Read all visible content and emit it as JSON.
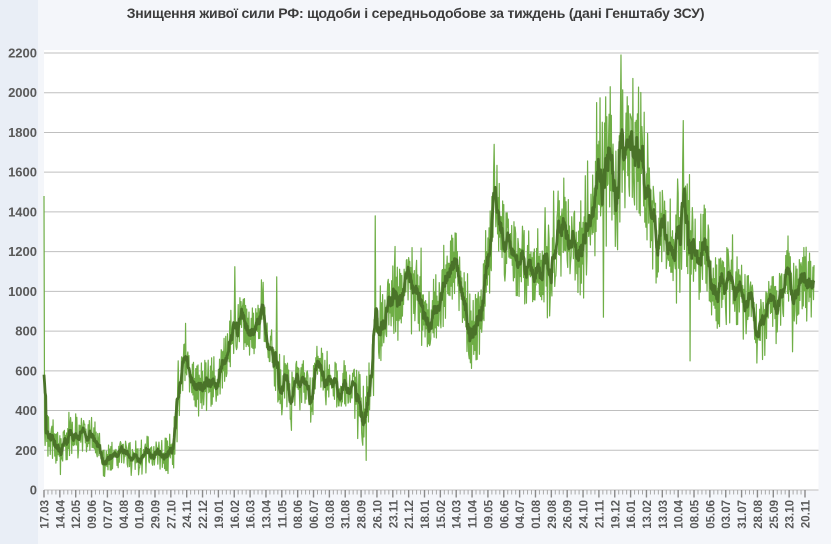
{
  "page": {
    "title": "Знищення живої сили РФ: щодоби і середньодобове за тиждень (дані Генштабу ЗСУ)"
  },
  "chart_data": {
    "type": "line",
    "title": "Знищення живої сили РФ: щодоби і середньодобове за тиждень (дані Генштабу ЗСУ)",
    "legend": "none",
    "grid": "horizontal",
    "y_axis": {
      "min": 0,
      "max": 2200,
      "tick_step": 200
    },
    "x_axis": {
      "days_per_tick": 28,
      "total_days": 1360,
      "tick_labels": [
        "17.03",
        "14.04",
        "12.05",
        "09.06",
        "07.07",
        "04.08",
        "01.09",
        "29.09",
        "27.10",
        "24.11",
        "22.12",
        "19.01",
        "16.02",
        "16.03",
        "13.04",
        "11.05",
        "08.06",
        "06.07",
        "03.08",
        "31.08",
        "28.09",
        "26.10",
        "23.11",
        "21.12",
        "18.01",
        "15.02",
        "14.03",
        "11.04",
        "09.05",
        "06.06",
        "04.07",
        "01.08",
        "29.08",
        "26.09",
        "24.10",
        "21.11",
        "19.12",
        "16.01",
        "13.02",
        "13.03",
        "10.04",
        "08.05",
        "05.06",
        "03.07",
        "31.07",
        "28.08",
        "25.09",
        "23.10",
        "20.11"
      ]
    },
    "series": [
      {
        "name": "щодоби",
        "role": "daily values",
        "color": "#6fae46",
        "line_width": 1.2,
        "noise_seed": 1337,
        "amplitude_anchors": [
          [
            0,
            110
          ],
          [
            60,
            95
          ],
          [
            120,
            70
          ],
          [
            200,
            80
          ],
          [
            240,
            150
          ],
          [
            300,
            130
          ],
          [
            360,
            110
          ],
          [
            420,
            130
          ],
          [
            480,
            115
          ],
          [
            540,
            130
          ],
          [
            585,
            200
          ],
          [
            620,
            200
          ],
          [
            680,
            210
          ],
          [
            730,
            180
          ],
          [
            790,
            210
          ],
          [
            850,
            170
          ],
          [
            906,
            230
          ],
          [
            960,
            200
          ],
          [
            1000,
            300
          ],
          [
            1050,
            280
          ],
          [
            1100,
            220
          ],
          [
            1140,
            230
          ],
          [
            1200,
            170
          ],
          [
            1260,
            160
          ],
          [
            1320,
            180
          ],
          [
            1360,
            150
          ]
        ],
        "spike_points": [
          [
            0,
            1480
          ],
          [
            237,
            650
          ],
          [
            337,
            1124
          ],
          [
            411,
            1073
          ],
          [
            452,
            403
          ],
          [
            585,
            1380
          ],
          [
            795,
            1740
          ],
          [
            908,
            1505
          ],
          [
            976,
            1950
          ],
          [
            988,
            870
          ],
          [
            1000,
            2030
          ],
          [
            1019,
            2190
          ],
          [
            1030,
            1980
          ],
          [
            1040,
            2072
          ],
          [
            1129,
            1860
          ],
          [
            1141,
            650
          ],
          [
            1262,
            770
          ],
          [
            1322,
            696
          ]
        ]
      },
      {
        "name": "середньодобове за тиждень",
        "role": "7-day moving average",
        "color": "#4a7329",
        "line_width": 2.8,
        "anchor_points": [
          [
            0,
            420
          ],
          [
            5,
            300
          ],
          [
            10,
            240
          ],
          [
            19,
            195
          ],
          [
            28,
            215
          ],
          [
            37,
            230
          ],
          [
            46,
            265
          ],
          [
            55,
            300
          ],
          [
            62,
            285
          ],
          [
            69,
            275
          ],
          [
            78,
            283
          ],
          [
            87,
            285
          ],
          [
            96,
            230
          ],
          [
            104,
            176
          ],
          [
            113,
            158
          ],
          [
            122,
            142
          ],
          [
            131,
            170
          ],
          [
            140,
            200
          ],
          [
            148,
            185
          ],
          [
            157,
            168
          ],
          [
            166,
            178
          ],
          [
            175,
            185
          ],
          [
            184,
            195
          ],
          [
            193,
            200
          ],
          [
            201,
            175
          ],
          [
            210,
            150
          ],
          [
            219,
            180
          ],
          [
            228,
            210
          ],
          [
            234,
            330
          ],
          [
            240,
            520
          ],
          [
            249,
            654
          ],
          [
            258,
            537
          ],
          [
            270,
            503
          ],
          [
            281,
            520
          ],
          [
            293,
            537
          ],
          [
            305,
            570
          ],
          [
            316,
            638
          ],
          [
            329,
            738
          ],
          [
            340,
            789
          ],
          [
            349,
            889
          ],
          [
            358,
            822
          ],
          [
            367,
            755
          ],
          [
            376,
            839
          ],
          [
            385,
            906
          ],
          [
            393,
            822
          ],
          [
            402,
            705
          ],
          [
            411,
            537
          ],
          [
            420,
            487
          ],
          [
            429,
            520
          ],
          [
            437,
            470
          ],
          [
            446,
            537
          ],
          [
            455,
            604
          ],
          [
            464,
            520
          ],
          [
            473,
            436
          ],
          [
            482,
            680
          ],
          [
            487,
            620
          ],
          [
            499,
            587
          ],
          [
            511,
            537
          ],
          [
            523,
            487
          ],
          [
            535,
            554
          ],
          [
            546,
            520
          ],
          [
            558,
            436
          ],
          [
            567,
            352
          ],
          [
            576,
            503
          ],
          [
            585,
            738
          ],
          [
            593,
            839
          ],
          [
            602,
            889
          ],
          [
            611,
            939
          ],
          [
            620,
            956
          ],
          [
            629,
            923
          ],
          [
            638,
            1040
          ],
          [
            646,
            1074
          ],
          [
            655,
            1040
          ],
          [
            664,
            956
          ],
          [
            673,
            872
          ],
          [
            682,
            822
          ],
          [
            691,
            889
          ],
          [
            700,
            906
          ],
          [
            708,
            990
          ],
          [
            717,
            1107
          ],
          [
            726,
            1158
          ],
          [
            735,
            1050
          ],
          [
            747,
            839
          ],
          [
            758,
            780
          ],
          [
            767,
            806
          ],
          [
            776,
            940
          ],
          [
            785,
            1141
          ],
          [
            794,
            1393
          ],
          [
            800,
            1443
          ],
          [
            808,
            1275
          ],
          [
            817,
            1225
          ],
          [
            826,
            1208
          ],
          [
            835,
            1141
          ],
          [
            844,
            1158
          ],
          [
            853,
            1175
          ],
          [
            861,
            1116
          ],
          [
            870,
            1133
          ],
          [
            879,
            1124
          ],
          [
            888,
            1149
          ],
          [
            897,
            1183
          ],
          [
            906,
            1242
          ],
          [
            914,
            1250
          ],
          [
            923,
            1292
          ],
          [
            932,
            1208
          ],
          [
            941,
            1183
          ],
          [
            950,
            1175
          ],
          [
            959,
            1376
          ],
          [
            967,
            1460
          ],
          [
            976,
            1510
          ],
          [
            982,
            1630
          ],
          [
            991,
            1594
          ],
          [
            1000,
            1661
          ],
          [
            1009,
            1470
          ],
          [
            1017,
            1745
          ],
          [
            1026,
            1812
          ],
          [
            1035,
            1695
          ],
          [
            1044,
            1661
          ],
          [
            1053,
            1645
          ],
          [
            1062,
            1510
          ],
          [
            1070,
            1376
          ],
          [
            1079,
            1275
          ],
          [
            1088,
            1300
          ],
          [
            1097,
            1259
          ],
          [
            1106,
            1166
          ],
          [
            1115,
            1225
          ],
          [
            1123,
            1300
          ],
          [
            1129,
            1359
          ],
          [
            1138,
            1300
          ],
          [
            1146,
            1208
          ],
          [
            1155,
            1107
          ],
          [
            1164,
            1270
          ],
          [
            1173,
            1166
          ],
          [
            1182,
            1007
          ],
          [
            1191,
            982
          ],
          [
            1200,
            1040
          ],
          [
            1208,
            1074
          ],
          [
            1217,
            1057
          ],
          [
            1226,
            1057
          ],
          [
            1238,
            956
          ],
          [
            1247,
            923
          ],
          [
            1256,
            872
          ],
          [
            1265,
            822
          ],
          [
            1270,
            797
          ],
          [
            1279,
            906
          ],
          [
            1288,
            973
          ],
          [
            1296,
            965
          ],
          [
            1305,
            1023
          ],
          [
            1314,
            1116
          ],
          [
            1323,
            1015
          ],
          [
            1332,
            990
          ],
          [
            1341,
            1057
          ],
          [
            1356,
            1080
          ],
          [
            1360,
            1080
          ]
        ]
      }
    ],
    "colors": {
      "plot_bg": "#ffffff",
      "page_bg": "#eef2f8",
      "grid": "#bfbfbf",
      "tick_minor": "#a8a8a8",
      "tick_major": "#8a8a8a",
      "axis_labels": "#595959",
      "title": "#3c3c3c"
    }
  }
}
